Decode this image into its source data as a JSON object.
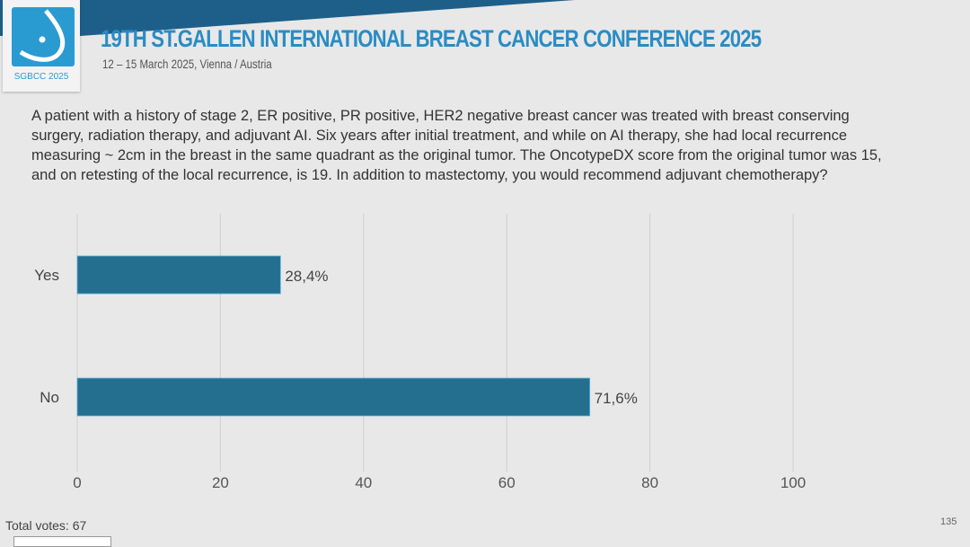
{
  "header": {
    "title": "19TH ST.GALLEN INTERNATIONAL BREAST CANCER CONFERENCE 2025",
    "dates": "12 – 15 March 2025, Vienna / Austria",
    "logo_text": "SGBCC 2025"
  },
  "question": "A patient with a history of stage 2, ER positive, PR positive, HER2 negative breast cancer was treated with breast conserving surgery, radiation therapy, and adjuvant AI.  Six years after initial treatment, and while on AI therapy, she had local recurrence measuring ~ 2cm in the breast in the same quadrant as the original tumor.  The OncotypeDX score from the original tumor was 15, and on retesting of the local recurrence, is 19.  In addition to mastectomy, you would recommend adjuvant chemotherapy?",
  "chart_data": {
    "type": "bar",
    "orientation": "horizontal",
    "categories": [
      "Yes",
      "No"
    ],
    "values": [
      28.4,
      71.6
    ],
    "data_labels": [
      "28,4%",
      "71,6%"
    ],
    "xlim": [
      0,
      100
    ],
    "xticks": [
      0,
      20,
      40,
      60,
      80,
      100
    ],
    "grid": true,
    "bar_color": "#246f90"
  },
  "footer": {
    "total_votes": "Total votes: 67",
    "slide_number": "135"
  }
}
